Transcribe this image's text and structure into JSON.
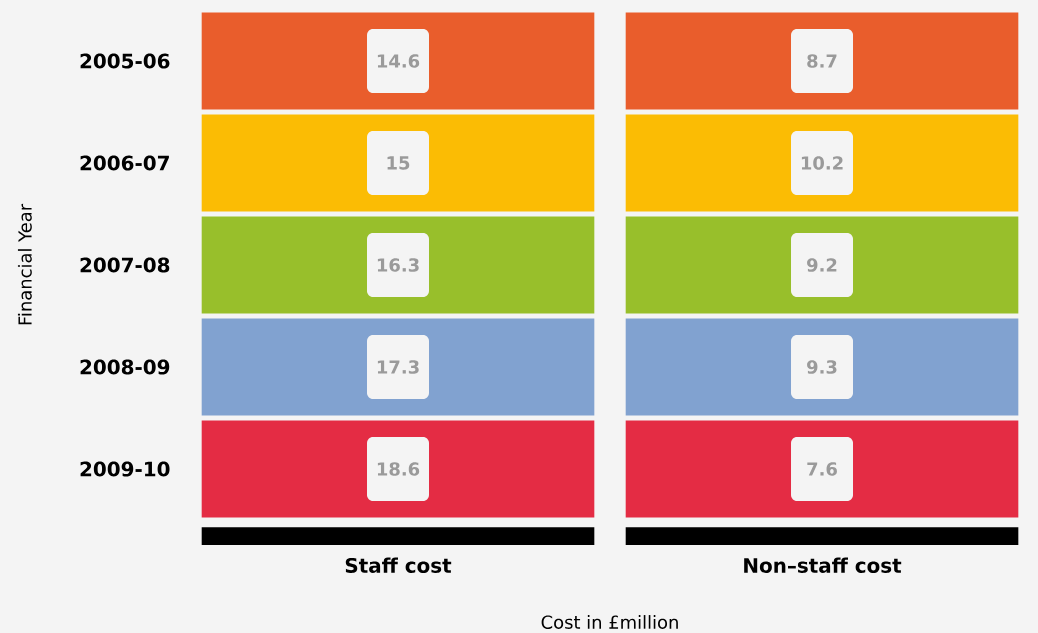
{
  "chart_data": {
    "type": "heatmap",
    "categories": [
      "Staff cost",
      "Non–staff cost"
    ],
    "y_categories": [
      "2005-06",
      "2006-07",
      "2007-08",
      "2008-09",
      "2009-10"
    ],
    "cells": [
      [
        14.6,
        8.7
      ],
      [
        15,
        10.2
      ],
      [
        16.3,
        9.2
      ],
      [
        17.3,
        9.3
      ],
      [
        18.6,
        7.6
      ]
    ],
    "colors": [
      "#e95d2c",
      "#fbbc04",
      "#98bf2b",
      "#81a2d0",
      "#e42c44"
    ],
    "data_labels": true,
    "xlabel": "Cost in £million",
    "ylabel": "Financial Year"
  }
}
